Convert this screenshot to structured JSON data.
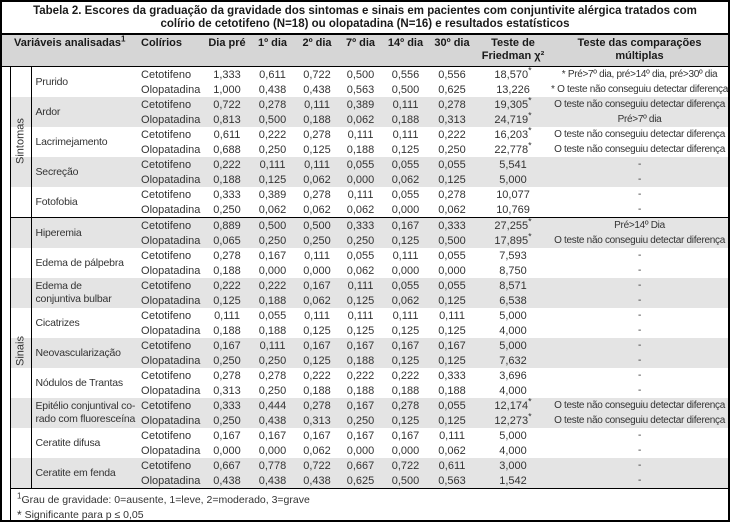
{
  "title": "Tabela 2. Escores da graduação da gravidade dos sintomas e sinais em pacientes com conjuntivite alérgica tratados com colírio de cetotifeno (N=18) ou olopatadina (N=16) e resultados estatísticos",
  "table": {
    "header": {
      "variaveis": "Variáveis analisadas",
      "variaveis_sup": "1",
      "colirios": "Colírios",
      "days": [
        "Dia pré",
        "1º dia",
        "2º dia",
        "7º dia",
        "14º dia",
        "30º dia"
      ],
      "friedman": "Teste de\nFriedman χ²",
      "comparacoes": "Teste das comparações\nmúltiplas"
    },
    "sections": [
      {
        "label": "Sintomas",
        "groups": [
          {
            "variable": "Prurido",
            "rows": [
              {
                "colirio": "Cetotifeno",
                "values": [
                  "1,333",
                  "0,611",
                  "0,722",
                  "0,500",
                  "0,556",
                  "0,556"
                ],
                "friedman": "18,570*",
                "comparacao": "* Pré>7º dia, pré>14º dia, pré>30º dia"
              },
              {
                "colirio": "Olopatadina",
                "values": [
                  "1,000",
                  "0,438",
                  "0,438",
                  "0,563",
                  "0,500",
                  "0,625"
                ],
                "friedman": "13,226",
                "comparacao": "* O teste não conseguiu detectar diferença"
              }
            ]
          },
          {
            "variable": "Ardor",
            "rows": [
              {
                "colirio": "Cetotifeno",
                "values": [
                  "0,722",
                  "0,278",
                  "0,111",
                  "0,389",
                  "0,111",
                  "0,278"
                ],
                "friedman": "19,305*",
                "comparacao": "O teste não conseguiu detectar diferença"
              },
              {
                "colirio": "Olopatadina",
                "values": [
                  "0,813",
                  "0,500",
                  "0,188",
                  "0,062",
                  "0,188",
                  "0,313"
                ],
                "friedman": "24,719*",
                "comparacao": "Pré>7º dia"
              }
            ]
          },
          {
            "variable": "Lacrimejamento",
            "rows": [
              {
                "colirio": "Cetotifeno",
                "values": [
                  "0,611",
                  "0,222",
                  "0,278",
                  "0,111",
                  "0,111",
                  "0,222"
                ],
                "friedman": "16,203*",
                "comparacao": "O teste não conseguiu detectar diferença"
              },
              {
                "colirio": "Olopatadina",
                "values": [
                  "0,688",
                  "0,250",
                  "0,125",
                  "0,188",
                  "0,125",
                  "0,250"
                ],
                "friedman": "22,778*",
                "comparacao": "O teste não conseguiu detectar diferença"
              }
            ]
          },
          {
            "variable": "Secreção",
            "rows": [
              {
                "colirio": "Cetotifeno",
                "values": [
                  "0,222",
                  "0,111",
                  "0,111",
                  "0,055",
                  "0,055",
                  "0,055"
                ],
                "friedman": "5,541",
                "comparacao": "-"
              },
              {
                "colirio": "Olopatadina",
                "values": [
                  "0,188",
                  "0,125",
                  "0,062",
                  "0,000",
                  "0,062",
                  "0,125"
                ],
                "friedman": "5,000",
                "comparacao": "-"
              }
            ]
          },
          {
            "variable": "Fotofobia",
            "rows": [
              {
                "colirio": "Cetotifeno",
                "values": [
                  "0,333",
                  "0,389",
                  "0,278",
                  "0,111",
                  "0,055",
                  "0,278"
                ],
                "friedman": "10,077",
                "comparacao": "-"
              },
              {
                "colirio": "Olopatadina",
                "values": [
                  "0,250",
                  "0,062",
                  "0,062",
                  "0,062",
                  "0,000",
                  "0,062"
                ],
                "friedman": "10,769",
                "comparacao": "-"
              }
            ]
          }
        ]
      },
      {
        "label": "Sinais",
        "groups": [
          {
            "variable": "Hiperemia",
            "rows": [
              {
                "colirio": "Cetotifeno",
                "values": [
                  "0,889",
                  "0,500",
                  "0,500",
                  "0,333",
                  "0,167",
                  "0,333"
                ],
                "friedman": "27,255*",
                "comparacao": "Pré>14º Dia"
              },
              {
                "colirio": "Olopatadina",
                "values": [
                  "0,065",
                  "0,250",
                  "0,250",
                  "0,250",
                  "0,125",
                  "0,500"
                ],
                "friedman": "17,895*",
                "comparacao": "O teste não conseguiu detectar diferença"
              }
            ]
          },
          {
            "variable": "Edema de pálpebra",
            "rows": [
              {
                "colirio": "Cetotifeno",
                "values": [
                  "0,278",
                  "0,167",
                  "0,111",
                  "0,055",
                  "0,111",
                  "0,055"
                ],
                "friedman": "7,593",
                "comparacao": "-"
              },
              {
                "colirio": "Olopatadina",
                "values": [
                  "0,188",
                  "0,000",
                  "0,000",
                  "0,062",
                  "0,000",
                  "0,000"
                ],
                "friedman": "8,750",
                "comparacao": "-"
              }
            ]
          },
          {
            "variable": "Edema de\nconjuntiva bulbar",
            "rows": [
              {
                "colirio": "Cetotifeno",
                "values": [
                  "0,222",
                  "0,222",
                  "0,167",
                  "0,111",
                  "0,055",
                  "0,055"
                ],
                "friedman": "8,571",
                "comparacao": "-"
              },
              {
                "colirio": "Olopatadina",
                "values": [
                  "0,125",
                  "0,188",
                  "0,062",
                  "0,125",
                  "0,062",
                  "0,125"
                ],
                "friedman": "6,538",
                "comparacao": "-"
              }
            ]
          },
          {
            "variable": "Cicatrizes",
            "rows": [
              {
                "colirio": "Cetotifeno",
                "values": [
                  "0,111",
                  "0,055",
                  "0,111",
                  "0,111",
                  "0,111",
                  "0,111"
                ],
                "friedman": "5,000",
                "comparacao": "-"
              },
              {
                "colirio": "Olopatadina",
                "values": [
                  "0,188",
                  "0,188",
                  "0,125",
                  "0,125",
                  "0,125",
                  "0,125"
                ],
                "friedman": "4,000",
                "comparacao": "-"
              }
            ]
          },
          {
            "variable": "Neovascularização",
            "rows": [
              {
                "colirio": "Cetotifeno",
                "values": [
                  "0,167",
                  "0,111",
                  "0,167",
                  "0,167",
                  "0,167",
                  "0,167"
                ],
                "friedman": "5,000",
                "comparacao": "-"
              },
              {
                "colirio": "Olopatadina",
                "values": [
                  "0,250",
                  "0,250",
                  "0,125",
                  "0,188",
                  "0,125",
                  "0,125"
                ],
                "friedman": "7,632",
                "comparacao": "-"
              }
            ]
          },
          {
            "variable": "Nódulos de Trantas",
            "rows": [
              {
                "colirio": "Cetotifeno",
                "values": [
                  "0,278",
                  "0,278",
                  "0,222",
                  "0,222",
                  "0,222",
                  "0,333"
                ],
                "friedman": "3,696",
                "comparacao": "-"
              },
              {
                "colirio": "Olopatadina",
                "values": [
                  "0,313",
                  "0,250",
                  "0,188",
                  "0,188",
                  "0,188",
                  "0,188"
                ],
                "friedman": "4,000",
                "comparacao": "-"
              }
            ]
          },
          {
            "variable": "Epitélio conjuntival co-\nrado com fluoresceína",
            "rows": [
              {
                "colirio": "Cetotifeno",
                "values": [
                  "0,333",
                  "0,444",
                  "0,278",
                  "0,167",
                  "0,278",
                  "0,055"
                ],
                "friedman": "12,174*",
                "comparacao": "O teste não conseguiu detectar diferença"
              },
              {
                "colirio": "Olopatadina",
                "values": [
                  "0,250",
                  "0,438",
                  "0,313",
                  "0,250",
                  "0,125",
                  "0,125"
                ],
                "friedman": "12,273*",
                "comparacao": "O teste não conseguiu detectar diferença"
              }
            ]
          },
          {
            "variable": "Ceratite difusa",
            "rows": [
              {
                "colirio": "Cetotifeno",
                "values": [
                  "0,167",
                  "0,167",
                  "0,167",
                  "0,167",
                  "0,167",
                  "0,111"
                ],
                "friedman": "5,000",
                "comparacao": "-"
              },
              {
                "colirio": "Olopatadina",
                "values": [
                  "0,000",
                  "0,000",
                  "0,062",
                  "0,000",
                  "0,000",
                  "0,062"
                ],
                "friedman": "4,000",
                "comparacao": "-"
              }
            ]
          },
          {
            "variable": "Ceratite em fenda",
            "rows": [
              {
                "colirio": "Cetotifeno",
                "values": [
                  "0,667",
                  "0,778",
                  "0,722",
                  "0,667",
                  "0,722",
                  "0,611"
                ],
                "friedman": "3,000",
                "comparacao": "-"
              },
              {
                "colirio": "Olopatadina",
                "values": [
                  "0,438",
                  "0,438",
                  "0,438",
                  "0,625",
                  "0,500",
                  "0,563"
                ],
                "friedman": "1,542",
                "comparacao": "-"
              }
            ]
          }
        ]
      }
    ]
  },
  "footnotes": [
    {
      "marker": "1",
      "text": "Grau de gravidade: 0=ausente, 1=leve, 2=moderado, 3=grave"
    },
    {
      "marker": "*",
      "text": "Significante para p ≤ 0,05"
    }
  ],
  "colors": {
    "header_bg": "#d6d6d6",
    "stripe_bg": "#e4e4e4",
    "border": "#000000",
    "text": "#333333"
  }
}
